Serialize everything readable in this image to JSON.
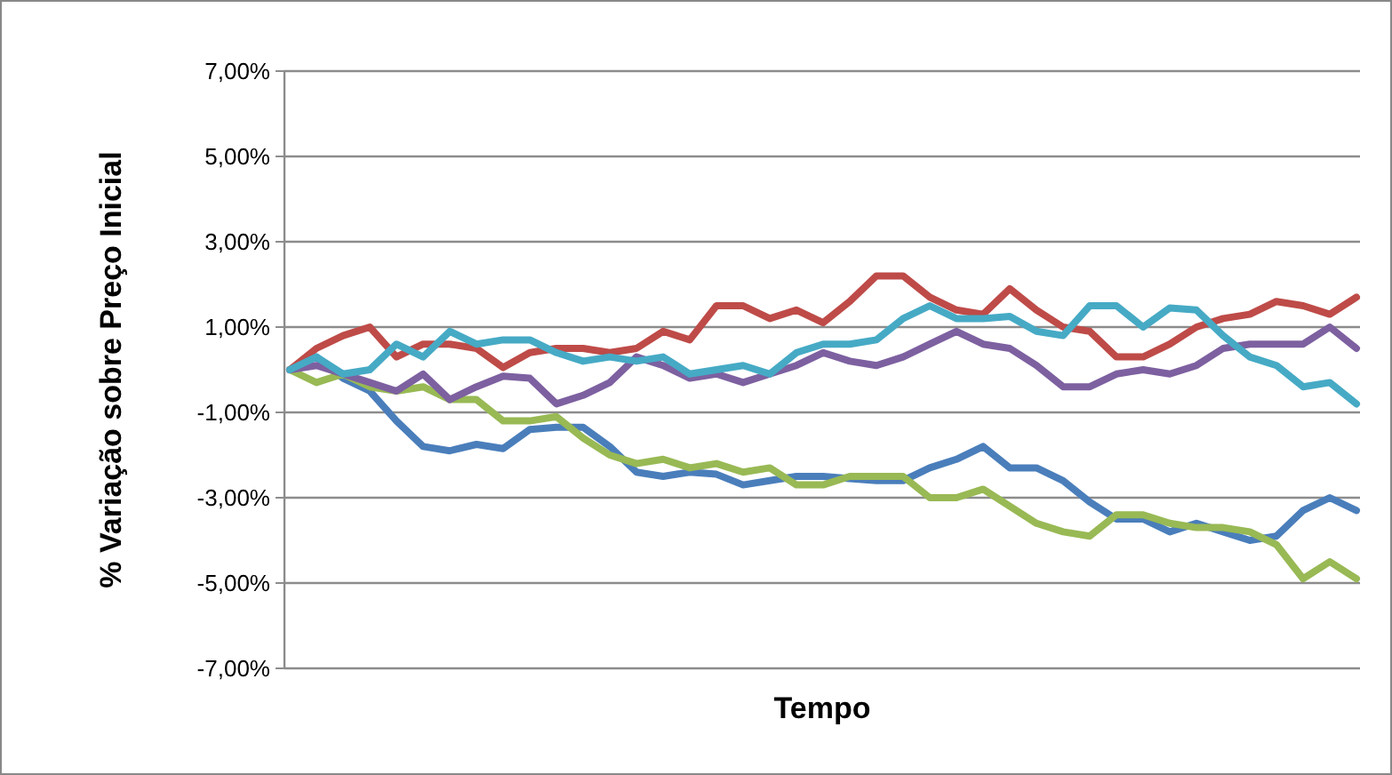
{
  "chart_data": {
    "type": "line",
    "xlabel": "Tempo",
    "ylabel": "% Variação sobre Preço Inicial",
    "categories": [
      null,
      null,
      null,
      null,
      null,
      null,
      null,
      null,
      null,
      null,
      null,
      null,
      null,
      null,
      null,
      null,
      null,
      null,
      null,
      null,
      null,
      null,
      null,
      null,
      null,
      null,
      null,
      null,
      null,
      null,
      null,
      null,
      null,
      null,
      null,
      null,
      null,
      null,
      null,
      null,
      null
    ],
    "ylim": [
      -7,
      7
    ],
    "yticks": [
      {
        "value": -7,
        "label": "-7,00%"
      },
      {
        "value": -5,
        "label": "-5,00%"
      },
      {
        "value": -3,
        "label": "-3,00%"
      },
      {
        "value": -1,
        "label": "-1,00%"
      },
      {
        "value": 1,
        "label": "1,00%"
      },
      {
        "value": 3,
        "label": "3,00%"
      },
      {
        "value": 5,
        "label": "5,00%"
      },
      {
        "value": 7,
        "label": "7,00%"
      }
    ],
    "grid": "y",
    "marker": "none",
    "line_style": "solid",
    "tick_labels": "y",
    "series": [
      {
        "color": "#4a7ebb",
        "values": [
          0,
          0.3,
          -0.2,
          -0.5,
          -1.2,
          -1.8,
          -1.9,
          -1.75,
          -1.85,
          -1.4,
          -1.35,
          -1.35,
          -1.8,
          -2.4,
          -2.5,
          -2.4,
          -2.45,
          -2.7,
          -2.6,
          -2.5,
          -2.5,
          -2.55,
          -2.6,
          -2.6,
          -2.3,
          -2.1,
          -1.8,
          -2.3,
          -2.3,
          -2.6,
          -3.1,
          -3.5,
          -3.5,
          -3.8,
          -3.6,
          -3.8,
          -4.0,
          -3.9,
          -3.3,
          -3.0,
          -3.3
        ]
      },
      {
        "color": "#be4b48",
        "values": [
          0,
          0.5,
          0.8,
          1.0,
          0.3,
          0.6,
          0.6,
          0.5,
          0.05,
          0.4,
          0.5,
          0.5,
          0.4,
          0.5,
          0.9,
          0.7,
          1.5,
          1.5,
          1.2,
          1.4,
          1.1,
          1.6,
          2.2,
          2.2,
          1.7,
          1.4,
          1.3,
          1.9,
          1.4,
          1.0,
          0.9,
          0.3,
          0.3,
          0.6,
          1.0,
          1.2,
          1.3,
          1.6,
          1.5,
          1.3,
          1.7
        ]
      },
      {
        "color": "#98b954",
        "values": [
          0,
          -0.3,
          -0.1,
          -0.4,
          -0.5,
          -0.4,
          -0.7,
          -0.7,
          -1.2,
          -1.2,
          -1.1,
          -1.6,
          -2.0,
          -2.2,
          -2.1,
          -2.3,
          -2.2,
          -2.4,
          -2.3,
          -2.7,
          -2.7,
          -2.5,
          -2.5,
          -2.5,
          -3.0,
          -3.0,
          -2.8,
          -3.2,
          -3.6,
          -3.8,
          -3.9,
          -3.4,
          -3.4,
          -3.6,
          -3.7,
          -3.7,
          -3.8,
          -4.1,
          -4.9,
          -4.5,
          -4.9
        ]
      },
      {
        "color": "#7d60a0",
        "values": [
          0,
          0.1,
          -0.1,
          -0.3,
          -0.5,
          -0.1,
          -0.7,
          -0.4,
          -0.15,
          -0.2,
          -0.8,
          -0.6,
          -0.3,
          0.3,
          0.1,
          -0.2,
          -0.1,
          -0.3,
          -0.1,
          0.1,
          0.4,
          0.2,
          0.1,
          0.3,
          0.6,
          0.9,
          0.6,
          0.5,
          0.1,
          -0.4,
          -0.4,
          -0.1,
          0.0,
          -0.1,
          0.1,
          0.5,
          0.6,
          0.6,
          0.6,
          1.0,
          0.5
        ]
      },
      {
        "color": "#46aac5",
        "values": [
          0,
          0.3,
          -0.1,
          0.0,
          0.6,
          0.3,
          0.9,
          0.6,
          0.7,
          0.7,
          0.4,
          0.2,
          0.3,
          0.2,
          0.3,
          -0.1,
          0.0,
          0.1,
          -0.1,
          0.4,
          0.6,
          0.6,
          0.7,
          1.2,
          1.5,
          1.2,
          1.2,
          1.25,
          0.9,
          0.8,
          1.5,
          1.5,
          1.0,
          1.45,
          1.4,
          0.8,
          0.3,
          0.1,
          -0.4,
          -0.3,
          -0.8
        ]
      }
    ]
  }
}
